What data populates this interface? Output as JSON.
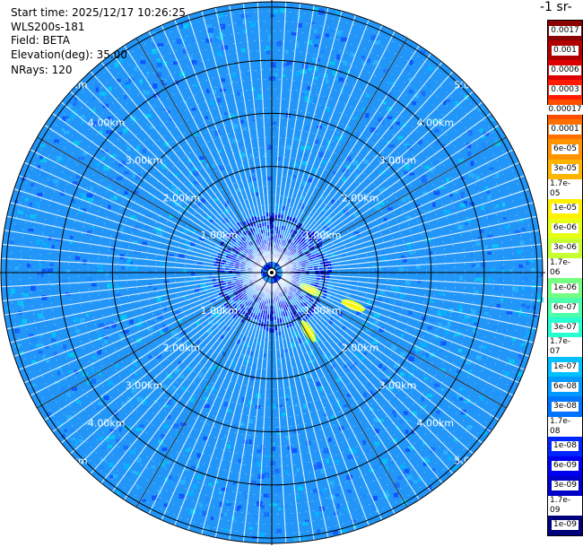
{
  "info": {
    "start_time": "Start time: 2025/12/17 10:26:25",
    "instrument": "WLS200s-181",
    "field": "Field: BETA",
    "elevation": "Elevation(deg): 35.00",
    "nrays": "NRays: 120"
  },
  "colorbar": {
    "unit_title": "-1 sr-",
    "labels": [
      "0.0017",
      "0.001",
      "0.0006",
      "0.0003",
      "0.00017",
      "0.0001",
      "6e-05",
      "3e-05",
      "1.7e-05",
      "1e-05",
      "6e-06",
      "3e-06",
      "1.7e-06",
      "1e-06",
      "6e-07",
      "3e-07",
      "1.7e-07",
      "1e-07",
      "6e-08",
      "3e-08",
      "1.7e-08",
      "1e-08",
      "6e-09",
      "3e-09",
      "1.7e-09",
      "1e-09"
    ],
    "colors": [
      "#8b0000",
      "#b00000",
      "#dd0000",
      "#ff1a00",
      "#ff4d00",
      "#ff7000",
      "#ff9300",
      "#ffb400",
      "#ffd000",
      "#fff200",
      "#e6ff12",
      "#c6ff31",
      "#9dff5a",
      "#74ff82",
      "#4dffaa",
      "#26ffd0",
      "#00e4f8",
      "#00c0ff",
      "#0099ff",
      "#0073ff",
      "#004dff",
      "#0026ff",
      "#0000f0",
      "#0000c8",
      "#0000a0",
      "#00007a"
    ]
  },
  "chart_data": {
    "type": "heatmap",
    "projection": "polar (PPI)",
    "field": "BETA",
    "elevation_deg": 35.0,
    "nrays": 120,
    "range_ring_labels": [
      "1.00km",
      "2.00km",
      "3.00km",
      "4.00km",
      "5.00km"
    ],
    "range_rings_km": [
      1,
      2,
      3,
      4,
      5
    ],
    "max_range_km": 5.1,
    "background_value_range": [
      3e-08,
      1.7e-07
    ],
    "near_range_speckle_value": 1e-08,
    "features": [
      {
        "azimuth_deg": 114,
        "range_km": 0.8,
        "value": 3e-06
      },
      {
        "azimuth_deg": 112,
        "range_km": 1.65,
        "value": 1e-05
      },
      {
        "azimuth_deg": 148,
        "range_km": 1.3,
        "value": 3e-06
      }
    ],
    "grid": true
  }
}
